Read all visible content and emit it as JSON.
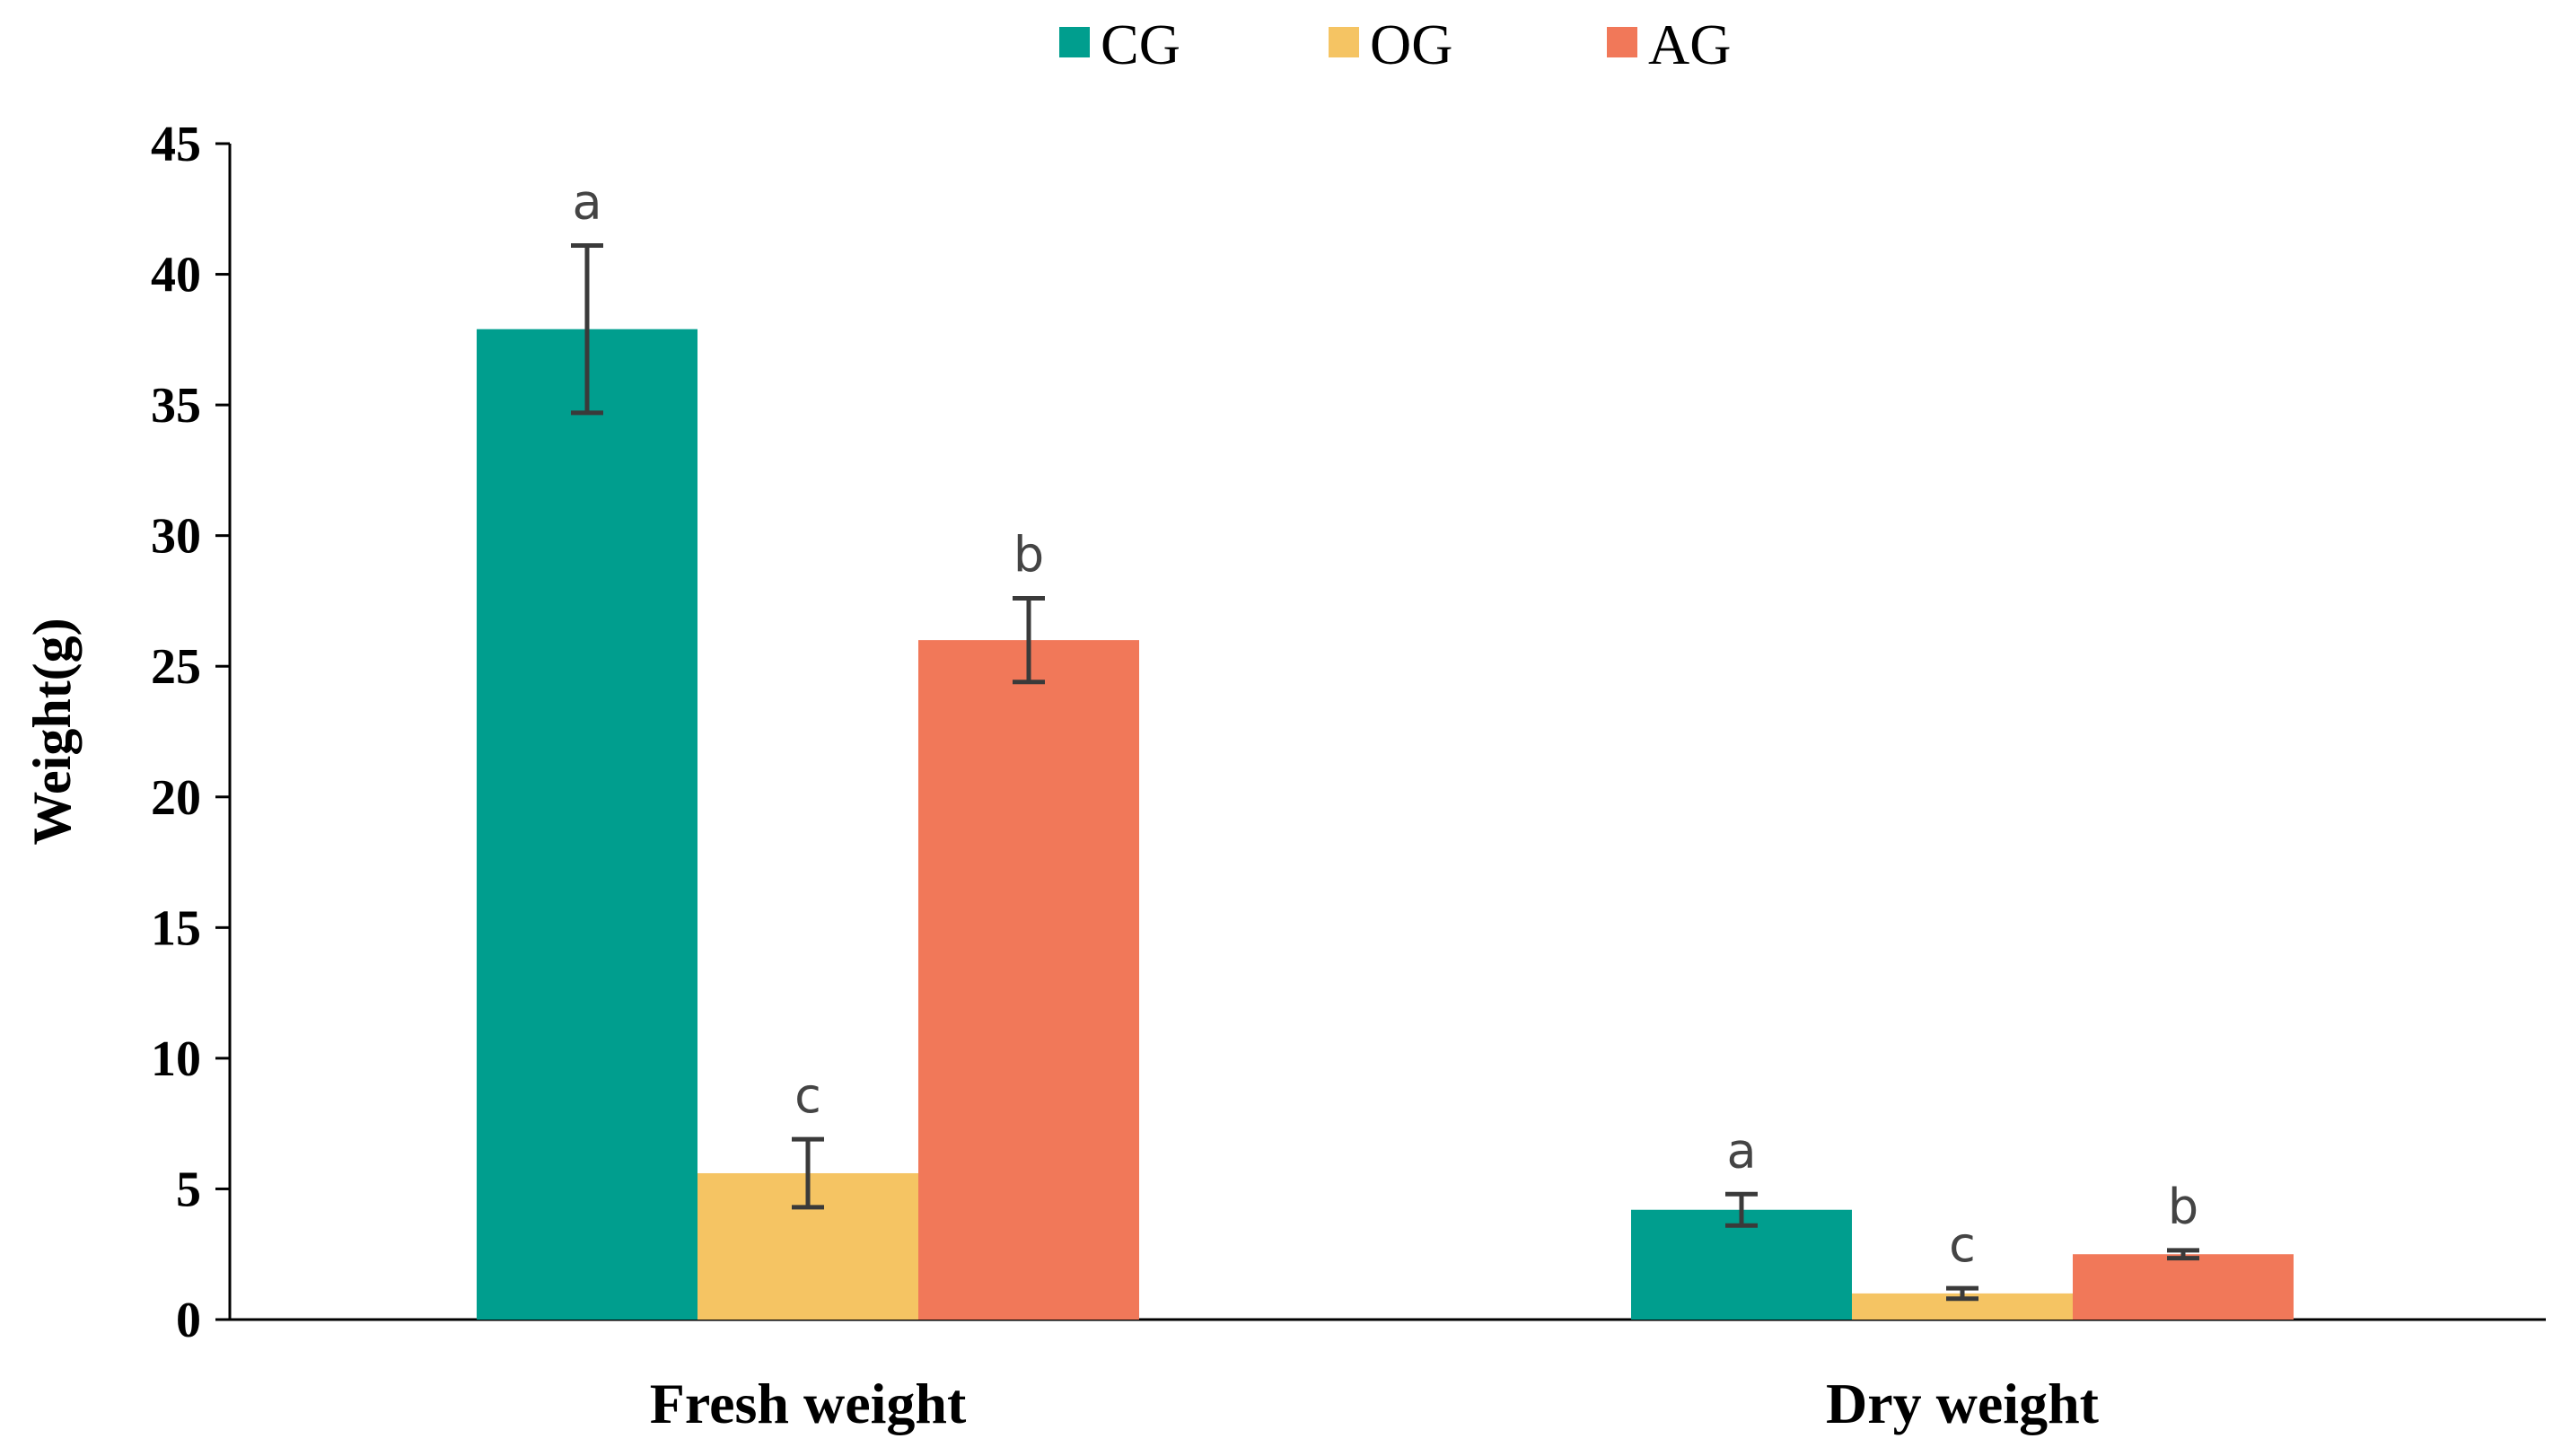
{
  "chart_data": {
    "type": "bar",
    "title": "",
    "xlabel": "",
    "ylabel": "Weight(g)",
    "ylim": [
      0,
      45
    ],
    "ytick_step": 5,
    "grid": false,
    "legend_position": "top-center",
    "categories": [
      "Fresh weight",
      "Dry weight"
    ],
    "series": [
      {
        "name": "CG",
        "color": "#009e8e",
        "values": [
          37.9,
          4.2
        ],
        "errors": [
          3.2,
          0.6
        ],
        "labels": [
          "a",
          "a"
        ]
      },
      {
        "name": "OG",
        "color": "#f5c463",
        "values": [
          5.6,
          1.0
        ],
        "errors": [
          1.3,
          0.2
        ],
        "labels": [
          "c",
          "c"
        ]
      },
      {
        "name": "AG",
        "color": "#f17859",
        "values": [
          26.0,
          2.5
        ],
        "errors": [
          1.6,
          0.15
        ],
        "labels": [
          "b",
          "b"
        ]
      }
    ]
  }
}
